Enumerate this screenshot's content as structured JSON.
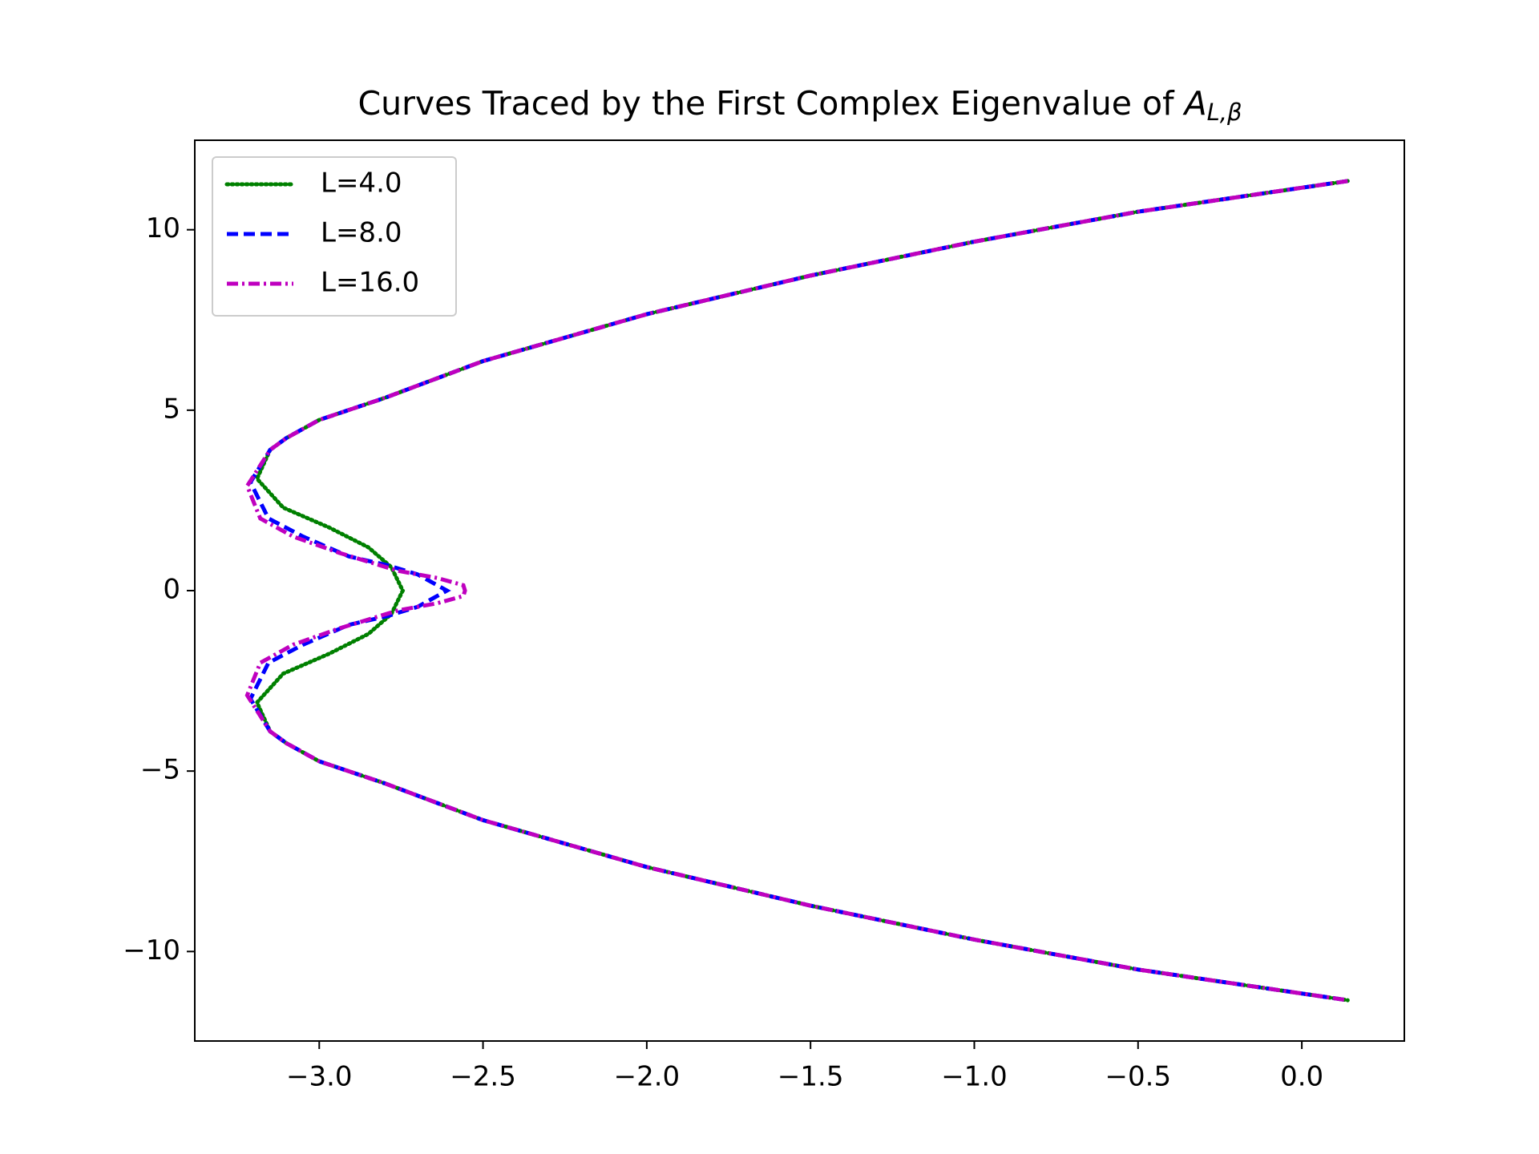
{
  "chart_data": {
    "type": "line",
    "title": "Curves Traced by the First Complex Eigenvalue of",
    "title_math": "A",
    "title_subscript": "L,β",
    "xlim": [
      -3.38,
      0.313
    ],
    "ylim": [
      -12.48,
      12.48
    ],
    "xticks": [
      {
        "value": -3.0,
        "label": "−3.0"
      },
      {
        "value": -2.5,
        "label": "−2.5"
      },
      {
        "value": -2.0,
        "label": "−2.0"
      },
      {
        "value": -1.5,
        "label": "−1.5"
      },
      {
        "value": -1.0,
        "label": "−1.0"
      },
      {
        "value": -0.5,
        "label": "−0.5"
      },
      {
        "value": 0.0,
        "label": "0.0"
      }
    ],
    "yticks": [
      {
        "value": -10,
        "label": "−10"
      },
      {
        "value": -5,
        "label": "−5"
      },
      0,
      5,
      10
    ],
    "grid": false,
    "legend": "upper left",
    "series": [
      {
        "name": "L=4.0",
        "color": "#008000",
        "linestyle": "dotted",
        "x": [
          0.14,
          -0.5,
          -1.0,
          -1.5,
          -2.0,
          -2.5,
          -2.8,
          -3.0,
          -3.1,
          -3.15,
          -3.19,
          -3.11,
          -2.97,
          -2.85,
          -2.78,
          -2.745,
          -2.78,
          -2.85,
          -2.97,
          -3.11,
          -3.19,
          -3.15,
          -3.1,
          -3.0,
          -2.8,
          -2.5,
          -2.0,
          -1.5,
          -1.0,
          -0.5,
          0.14
        ],
        "y": [
          11.35,
          10.5,
          9.67,
          8.73,
          7.66,
          6.36,
          5.34,
          4.73,
          4.23,
          3.9,
          3.1,
          2.3,
          1.75,
          1.2,
          0.65,
          0,
          -0.65,
          -1.2,
          -1.75,
          -2.3,
          -3.1,
          -3.9,
          -4.23,
          -4.73,
          -5.34,
          -6.36,
          -7.66,
          -8.73,
          -9.67,
          -10.5,
          -11.35
        ]
      },
      {
        "name": "L=8.0",
        "color": "#0000ff",
        "linestyle": "dashed",
        "x": [
          0.14,
          -0.5,
          -1.0,
          -1.5,
          -2.0,
          -2.5,
          -2.8,
          -3.0,
          -3.1,
          -3.15,
          -3.21,
          -3.155,
          -3.05,
          -2.91,
          -2.79,
          -2.7,
          -2.61,
          -2.7,
          -2.79,
          -2.91,
          -3.05,
          -3.155,
          -3.21,
          -3.15,
          -3.1,
          -3.0,
          -2.8,
          -2.5,
          -2.0,
          -1.5,
          -1.0,
          -0.5,
          0.14
        ],
        "y": [
          11.35,
          10.5,
          9.67,
          8.73,
          7.66,
          6.36,
          5.34,
          4.73,
          4.23,
          3.9,
          3.0,
          2.0,
          1.5,
          0.95,
          0.7,
          0.45,
          0,
          -0.45,
          -0.7,
          -0.95,
          -1.5,
          -2.0,
          -3.0,
          -3.9,
          -4.23,
          -4.73,
          -5.34,
          -6.36,
          -7.66,
          -8.73,
          -9.67,
          -10.5,
          -11.35
        ]
      },
      {
        "name": "L=16.0",
        "color": "#bf00bf",
        "linestyle": "dashdot",
        "x": [
          0.14,
          -0.5,
          -1.0,
          -1.5,
          -2.0,
          -2.5,
          -2.8,
          -3.0,
          -3.1,
          -3.15,
          -3.22,
          -3.18,
          -3.08,
          -2.94,
          -2.76,
          -2.64,
          -2.56,
          -2.555,
          -2.56,
          -2.64,
          -2.76,
          -2.94,
          -3.08,
          -3.18,
          -3.22,
          -3.15,
          -3.1,
          -3.0,
          -2.8,
          -2.5,
          -2.0,
          -1.5,
          -1.0,
          -0.5,
          0.14
        ],
        "y": [
          11.35,
          10.5,
          9.67,
          8.73,
          7.66,
          6.36,
          5.34,
          4.73,
          4.23,
          3.9,
          2.9,
          2.0,
          1.5,
          1.05,
          0.55,
          0.35,
          0.15,
          0,
          -0.15,
          -0.35,
          -0.55,
          -1.05,
          -1.5,
          -2.0,
          -2.9,
          -3.9,
          -4.23,
          -4.73,
          -5.34,
          -6.36,
          -7.66,
          -8.73,
          -9.67,
          -10.5,
          -11.35
        ]
      }
    ]
  }
}
